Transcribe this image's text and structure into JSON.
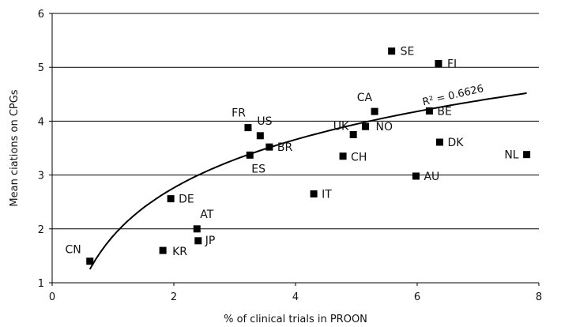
{
  "chart_data": {
    "type": "scatter",
    "xlabel": "% of clinical trials in PROON",
    "ylabel": "Mean ciations on CPGs",
    "xlim": [
      0,
      8
    ],
    "ylim": [
      1,
      6
    ],
    "x_ticks": [
      "0",
      "2",
      "4",
      "6",
      "8"
    ],
    "y_ticks": [
      "1",
      "2",
      "3",
      "4",
      "5",
      "6"
    ],
    "grid": "horizontal",
    "points": [
      {
        "label": "CN",
        "x": 0.62,
        "y": 1.4
      },
      {
        "label": "KR",
        "x": 1.82,
        "y": 1.6
      },
      {
        "label": "DE",
        "x": 1.95,
        "y": 2.56
      },
      {
        "label": "AT",
        "x": 2.38,
        "y": 2.0
      },
      {
        "label": "JP",
        "x": 2.4,
        "y": 1.78
      },
      {
        "label": "FR",
        "x": 3.22,
        "y": 3.88
      },
      {
        "label": "ES",
        "x": 3.25,
        "y": 3.37
      },
      {
        "label": "US",
        "x": 3.42,
        "y": 3.73
      },
      {
        "label": "BR",
        "x": 3.57,
        "y": 3.52
      },
      {
        "label": "IT",
        "x": 4.3,
        "y": 2.65
      },
      {
        "label": "CH",
        "x": 4.78,
        "y": 3.35
      },
      {
        "label": "UK",
        "x": 4.95,
        "y": 3.75
      },
      {
        "label": "NO",
        "x": 5.15,
        "y": 3.9
      },
      {
        "label": "CA",
        "x": 5.3,
        "y": 4.18
      },
      {
        "label": "SE",
        "x": 5.58,
        "y": 5.3
      },
      {
        "label": "AU",
        "x": 5.98,
        "y": 2.98
      },
      {
        "label": "BE",
        "x": 6.2,
        "y": 4.19
      },
      {
        "label": "FI",
        "x": 6.35,
        "y": 5.07
      },
      {
        "label": "DK",
        "x": 6.37,
        "y": 3.61
      },
      {
        "label": "NL",
        "x": 7.8,
        "y": 3.38
      }
    ],
    "trendline": {
      "type": "logarithmic",
      "label": "R² = 0.6626",
      "x_start": 0.62,
      "x_end": 7.8,
      "y_start": 1.25,
      "y_end": 4.52
    },
    "marker_color": "#000000"
  }
}
